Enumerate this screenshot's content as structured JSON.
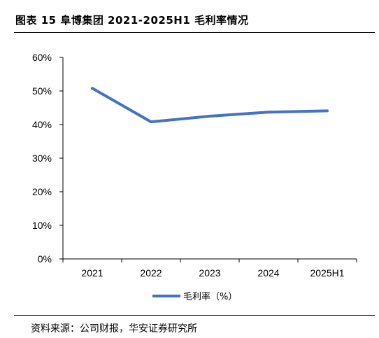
{
  "header": {
    "title": "图表 15 阜博集团 2021-2025H1 毛利率情况"
  },
  "footer": {
    "source": "资料来源：公司财报，华安证券研究所"
  },
  "chart_data": {
    "type": "line",
    "title": "图表 15 阜博集团 2021-2025H1 毛利率情况",
    "categories": [
      "2021",
      "2022",
      "2023",
      "2024",
      "2025H1"
    ],
    "series": [
      {
        "name": "毛利率（%）",
        "values": [
          50.8,
          40.8,
          42.5,
          43.7,
          44.1
        ],
        "color": "#4472C4"
      }
    ],
    "ylim": [
      0,
      60
    ],
    "yticks": [
      0,
      10,
      20,
      30,
      40,
      50,
      60
    ],
    "ytick_labels": [
      "0%",
      "10%",
      "20%",
      "30%",
      "40%",
      "50%",
      "60%"
    ],
    "xlabel": "",
    "ylabel": "",
    "grid": false,
    "legend": "bottom-center"
  }
}
